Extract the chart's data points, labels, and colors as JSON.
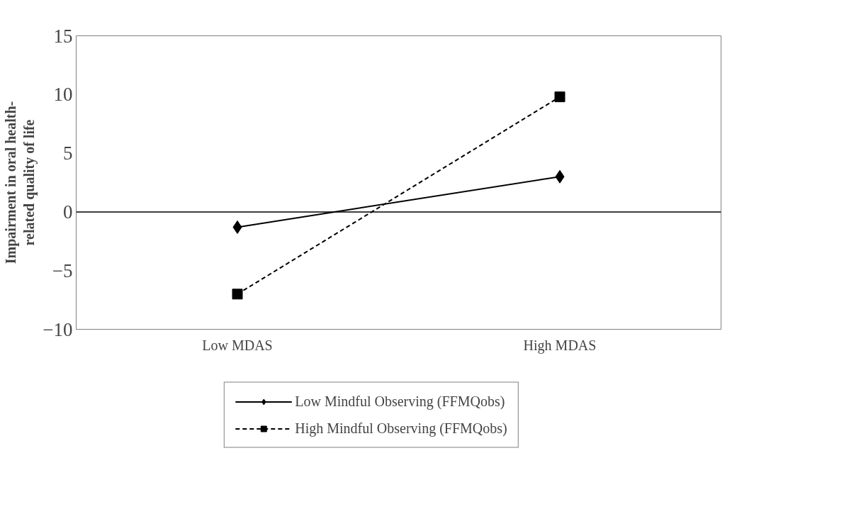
{
  "chart_data": {
    "type": "line",
    "ylabel": "Impairment in oral health-related quality of life",
    "categories": [
      "Low MDAS",
      "High MDAS"
    ],
    "series": [
      {
        "name": "Low Mindful Observing (FFMQobs)",
        "color": "#000000",
        "values": [
          -1.3,
          3.0
        ],
        "marker": "diamond",
        "line_style": "solid"
      },
      {
        "name": "High Mindful Observing (FFMQobs)",
        "color": "#000000",
        "values": [
          -7.0,
          9.8
        ],
        "marker": "square",
        "line_style": "dashed"
      }
    ],
    "ref_lines": [
      {
        "axis": "y",
        "value": 0,
        "color": "#000000"
      }
    ],
    "ylim": [
      -10,
      15
    ],
    "yticks": [
      -10,
      -5,
      0,
      5,
      10,
      15
    ],
    "grid": false,
    "legend": "bottom"
  }
}
